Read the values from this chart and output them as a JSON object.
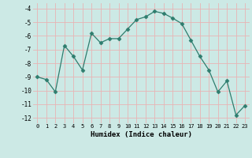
{
  "x": [
    0,
    1,
    2,
    3,
    4,
    5,
    6,
    7,
    8,
    9,
    10,
    11,
    12,
    13,
    14,
    15,
    16,
    17,
    18,
    19,
    20,
    21,
    22,
    23
  ],
  "y": [
    -9.0,
    -9.2,
    -10.1,
    -6.7,
    -7.5,
    -8.5,
    -5.8,
    -6.5,
    -6.2,
    -6.2,
    -5.5,
    -4.8,
    -4.6,
    -4.2,
    -4.35,
    -4.7,
    -5.1,
    -6.3,
    -7.5,
    -8.5,
    -10.1,
    -9.3,
    -11.8,
    -11.1
  ],
  "line_color": "#2e7d6e",
  "marker": "D",
  "marker_size": 2.5,
  "xlabel": "Humidex (Indice chaleur)",
  "xlim": [
    -0.5,
    23.5
  ],
  "ylim": [
    -12.4,
    -3.6
  ],
  "yticks": [
    -12,
    -11,
    -10,
    -9,
    -8,
    -7,
    -6,
    -5,
    -4
  ],
  "xticks": [
    0,
    1,
    2,
    3,
    4,
    5,
    6,
    7,
    8,
    9,
    10,
    11,
    12,
    13,
    14,
    15,
    16,
    17,
    18,
    19,
    20,
    21,
    22,
    23
  ],
  "bg_color": "#cce9e5",
  "grid_color": "#e8b4b4"
}
